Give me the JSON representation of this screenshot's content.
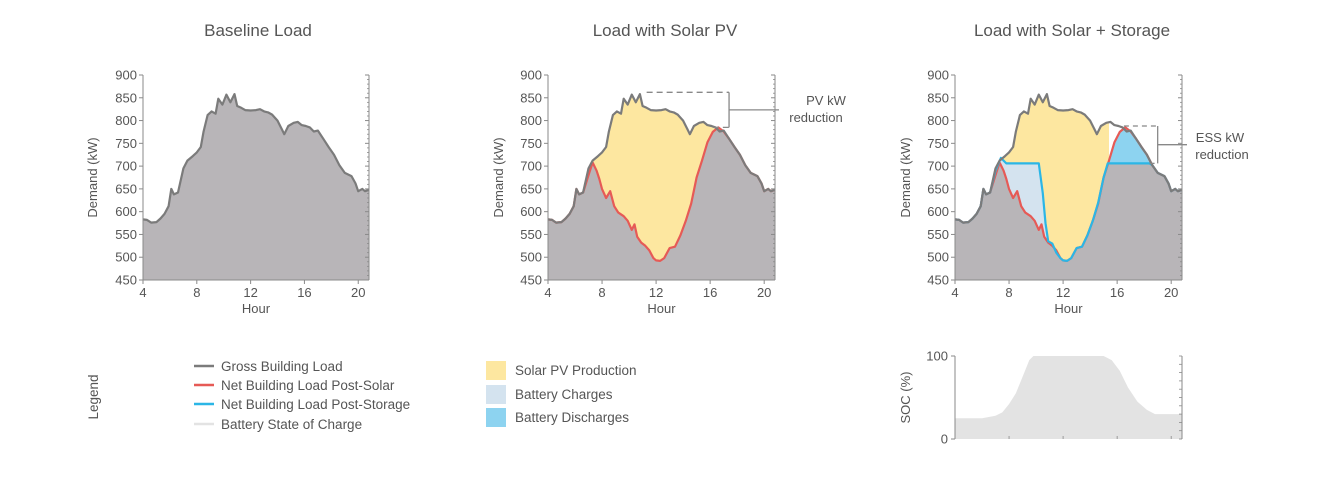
{
  "colors": {
    "gross": "#7b7b7b",
    "area": "#b8b5b8",
    "net_solar": "#e65a56",
    "net_storage": "#2bb6e6",
    "solar_fill": "#fde7a0",
    "charge_fill": "#d4e3ef",
    "discharge_fill": "#8dd3f0",
    "soc_fill": "#e3e3e3",
    "axis": "#8a8a8a"
  },
  "chart_data": [
    {
      "id": "baseline",
      "type": "area",
      "title": "Baseline Load",
      "xlabel": "Hour",
      "ylabel": "Demand (kW)",
      "xlim": [
        4,
        20.8
      ],
      "ylim": [
        450,
        900
      ],
      "xticks": [
        4,
        8,
        12,
        16,
        20
      ],
      "yticks": [
        450,
        500,
        550,
        600,
        650,
        700,
        750,
        800,
        850,
        900
      ],
      "series": [
        {
          "name": "Gross Building Load",
          "ref": "gross"
        }
      ]
    },
    {
      "id": "solar",
      "type": "area",
      "title": "Load with Solar PV",
      "xlabel": "Hour",
      "ylabel": "Demand (kW)",
      "xlim": [
        4,
        20.8
      ],
      "ylim": [
        450,
        900
      ],
      "xticks": [
        4,
        8,
        12,
        16,
        20
      ],
      "yticks": [
        450,
        500,
        550,
        600,
        650,
        700,
        750,
        800,
        850,
        900
      ],
      "annotation": [
        "PV kW",
        "reduction"
      ],
      "series": [
        {
          "name": "Gross Building Load",
          "ref": "gross"
        },
        {
          "name": "Net Building Load Post-Solar",
          "ref": "net_solar"
        },
        {
          "name": "Solar PV Production",
          "ref": "gross-minus-net_solar"
        }
      ]
    },
    {
      "id": "storage",
      "type": "area",
      "title": "Load with Solar + Storage",
      "xlabel": "Hour",
      "ylabel": "Demand (kW)",
      "xlim": [
        4,
        20.8
      ],
      "ylim": [
        450,
        900
      ],
      "xticks": [
        4,
        8,
        12,
        16,
        20
      ],
      "yticks": [
        450,
        500,
        550,
        600,
        650,
        700,
        750,
        800,
        850,
        900
      ],
      "annotation": [
        "ESS kW",
        "reduction"
      ],
      "series": [
        {
          "name": "Gross Building Load",
          "ref": "gross"
        },
        {
          "name": "Net Building Load Post-Solar",
          "ref": "net_solar"
        },
        {
          "name": "Net Building Load Post-Storage",
          "ref": "net_storage"
        }
      ]
    },
    {
      "id": "soc",
      "type": "area",
      "title": "",
      "xlabel": "",
      "ylabel": "SOC (%)",
      "xlim": [
        4,
        20.8
      ],
      "ylim": [
        0,
        100
      ],
      "yticks": [
        0,
        100
      ],
      "series": [
        {
          "name": "Battery State of Charge",
          "ref": "soc"
        }
      ]
    }
  ],
  "series_values": {
    "gross": [
      [
        4.0,
        583
      ],
      [
        4.3,
        582
      ],
      [
        4.6,
        576
      ],
      [
        5.0,
        577
      ],
      [
        5.3,
        585
      ],
      [
        5.6,
        595
      ],
      [
        5.9,
        612
      ],
      [
        6.1,
        650
      ],
      [
        6.3,
        638
      ],
      [
        6.6,
        642
      ],
      [
        7.0,
        695
      ],
      [
        7.3,
        712
      ],
      [
        7.7,
        722
      ],
      [
        8.0,
        730
      ],
      [
        8.3,
        742
      ],
      [
        8.5,
        775
      ],
      [
        8.8,
        812
      ],
      [
        9.1,
        820
      ],
      [
        9.4,
        815
      ],
      [
        9.6,
        848
      ],
      [
        9.9,
        835
      ],
      [
        10.2,
        857
      ],
      [
        10.5,
        840
      ],
      [
        10.8,
        858
      ],
      [
        11.0,
        832
      ],
      [
        11.3,
        828
      ],
      [
        11.6,
        823
      ],
      [
        12.0,
        822
      ],
      [
        12.4,
        823
      ],
      [
        12.7,
        825
      ],
      [
        13.0,
        820
      ],
      [
        13.3,
        818
      ],
      [
        13.6,
        813
      ],
      [
        14.0,
        800
      ],
      [
        14.3,
        782
      ],
      [
        14.5,
        770
      ],
      [
        14.8,
        788
      ],
      [
        15.2,
        795
      ],
      [
        15.5,
        797
      ],
      [
        15.8,
        790
      ],
      [
        16.1,
        788
      ],
      [
        16.4,
        785
      ],
      [
        16.7,
        776
      ],
      [
        17.0,
        778
      ],
      [
        17.4,
        760
      ],
      [
        17.8,
        742
      ],
      [
        18.2,
        725
      ],
      [
        18.6,
        702
      ],
      [
        19.0,
        685
      ],
      [
        19.5,
        678
      ],
      [
        19.8,
        662
      ],
      [
        20.0,
        645
      ],
      [
        20.3,
        650
      ],
      [
        20.5,
        645
      ],
      [
        20.8,
        648
      ]
    ],
    "net_solar": [
      [
        4.0,
        583
      ],
      [
        4.3,
        582
      ],
      [
        4.6,
        576
      ],
      [
        5.0,
        577
      ],
      [
        5.3,
        585
      ],
      [
        5.6,
        595
      ],
      [
        5.9,
        612
      ],
      [
        6.1,
        650
      ],
      [
        6.3,
        638
      ],
      [
        6.6,
        642
      ],
      [
        7.0,
        680
      ],
      [
        7.3,
        708
      ],
      [
        7.6,
        690
      ],
      [
        7.8,
        672
      ],
      [
        8.0,
        650
      ],
      [
        8.3,
        630
      ],
      [
        8.6,
        645
      ],
      [
        8.9,
        612
      ],
      [
        9.2,
        598
      ],
      [
        9.6,
        590
      ],
      [
        9.9,
        580
      ],
      [
        10.2,
        560
      ],
      [
        10.4,
        572
      ],
      [
        10.6,
        545
      ],
      [
        10.9,
        532
      ],
      [
        11.2,
        525
      ],
      [
        11.5,
        515
      ],
      [
        11.8,
        498
      ],
      [
        12.0,
        493
      ],
      [
        12.3,
        492
      ],
      [
        12.6,
        498
      ],
      [
        13.0,
        520
      ],
      [
        13.4,
        523
      ],
      [
        13.8,
        548
      ],
      [
        14.2,
        580
      ],
      [
        14.6,
        618
      ],
      [
        15.0,
        675
      ],
      [
        15.4,
        712
      ],
      [
        15.8,
        752
      ],
      [
        16.2,
        775
      ],
      [
        16.6,
        785
      ],
      [
        17.0,
        776
      ],
      [
        17.4,
        760
      ],
      [
        17.8,
        742
      ],
      [
        18.2,
        725
      ],
      [
        18.6,
        702
      ],
      [
        19.0,
        685
      ],
      [
        19.5,
        678
      ],
      [
        19.8,
        662
      ],
      [
        20.0,
        645
      ],
      [
        20.3,
        650
      ],
      [
        20.5,
        645
      ],
      [
        20.8,
        648
      ]
    ],
    "net_storage": [
      [
        4.0,
        583
      ],
      [
        4.3,
        582
      ],
      [
        4.6,
        576
      ],
      [
        5.0,
        577
      ],
      [
        5.3,
        585
      ],
      [
        5.6,
        595
      ],
      [
        5.9,
        612
      ],
      [
        6.1,
        650
      ],
      [
        6.3,
        638
      ],
      [
        6.6,
        642
      ],
      [
        7.0,
        690
      ],
      [
        7.4,
        718
      ],
      [
        7.8,
        706
      ],
      [
        8.5,
        706
      ],
      [
        9.5,
        706
      ],
      [
        10.2,
        706
      ],
      [
        10.5,
        640
      ],
      [
        10.7,
        575
      ],
      [
        10.9,
        535
      ],
      [
        11.2,
        530
      ],
      [
        11.5,
        510
      ],
      [
        11.8,
        498
      ],
      [
        12.0,
        493
      ],
      [
        12.3,
        492
      ],
      [
        12.6,
        498
      ],
      [
        13.0,
        520
      ],
      [
        13.4,
        523
      ],
      [
        13.8,
        548
      ],
      [
        14.2,
        580
      ],
      [
        14.6,
        620
      ],
      [
        15.0,
        675
      ],
      [
        15.3,
        706
      ],
      [
        16.0,
        706
      ],
      [
        17.0,
        706
      ],
      [
        18.0,
        706
      ],
      [
        18.4,
        706
      ],
      [
        18.6,
        702
      ],
      [
        19.0,
        685
      ],
      [
        19.5,
        678
      ],
      [
        19.8,
        662
      ],
      [
        20.0,
        645
      ],
      [
        20.3,
        650
      ],
      [
        20.5,
        645
      ],
      [
        20.8,
        648
      ]
    ],
    "soc": [
      [
        4.0,
        25
      ],
      [
        6.0,
        25
      ],
      [
        7.0,
        28
      ],
      [
        7.5,
        32
      ],
      [
        8.0,
        42
      ],
      [
        8.5,
        55
      ],
      [
        9.0,
        75
      ],
      [
        9.5,
        95
      ],
      [
        9.8,
        100
      ],
      [
        11.0,
        100
      ],
      [
        14.0,
        100
      ],
      [
        15.0,
        100
      ],
      [
        15.6,
        95
      ],
      [
        16.2,
        82
      ],
      [
        16.8,
        62
      ],
      [
        17.5,
        45
      ],
      [
        18.2,
        35
      ],
      [
        18.8,
        30
      ],
      [
        19.5,
        30
      ],
      [
        20.8,
        30
      ]
    ]
  },
  "legend": {
    "title": "Legend",
    "lines": [
      {
        "label": "Gross Building Load",
        "color_ref": "gross"
      },
      {
        "label": "Net Building Load Post-Solar",
        "color_ref": "net_solar"
      },
      {
        "label": "Net Building Load Post-Storage",
        "color_ref": "net_storage"
      },
      {
        "label": "Battery State of Charge",
        "color_ref": "soc_fill"
      }
    ],
    "boxes": [
      {
        "label": "Solar PV Production",
        "color_ref": "solar_fill"
      },
      {
        "label": "Battery Charges",
        "color_ref": "charge_fill"
      },
      {
        "label": "Battery Discharges",
        "color_ref": "discharge_fill"
      }
    ]
  }
}
